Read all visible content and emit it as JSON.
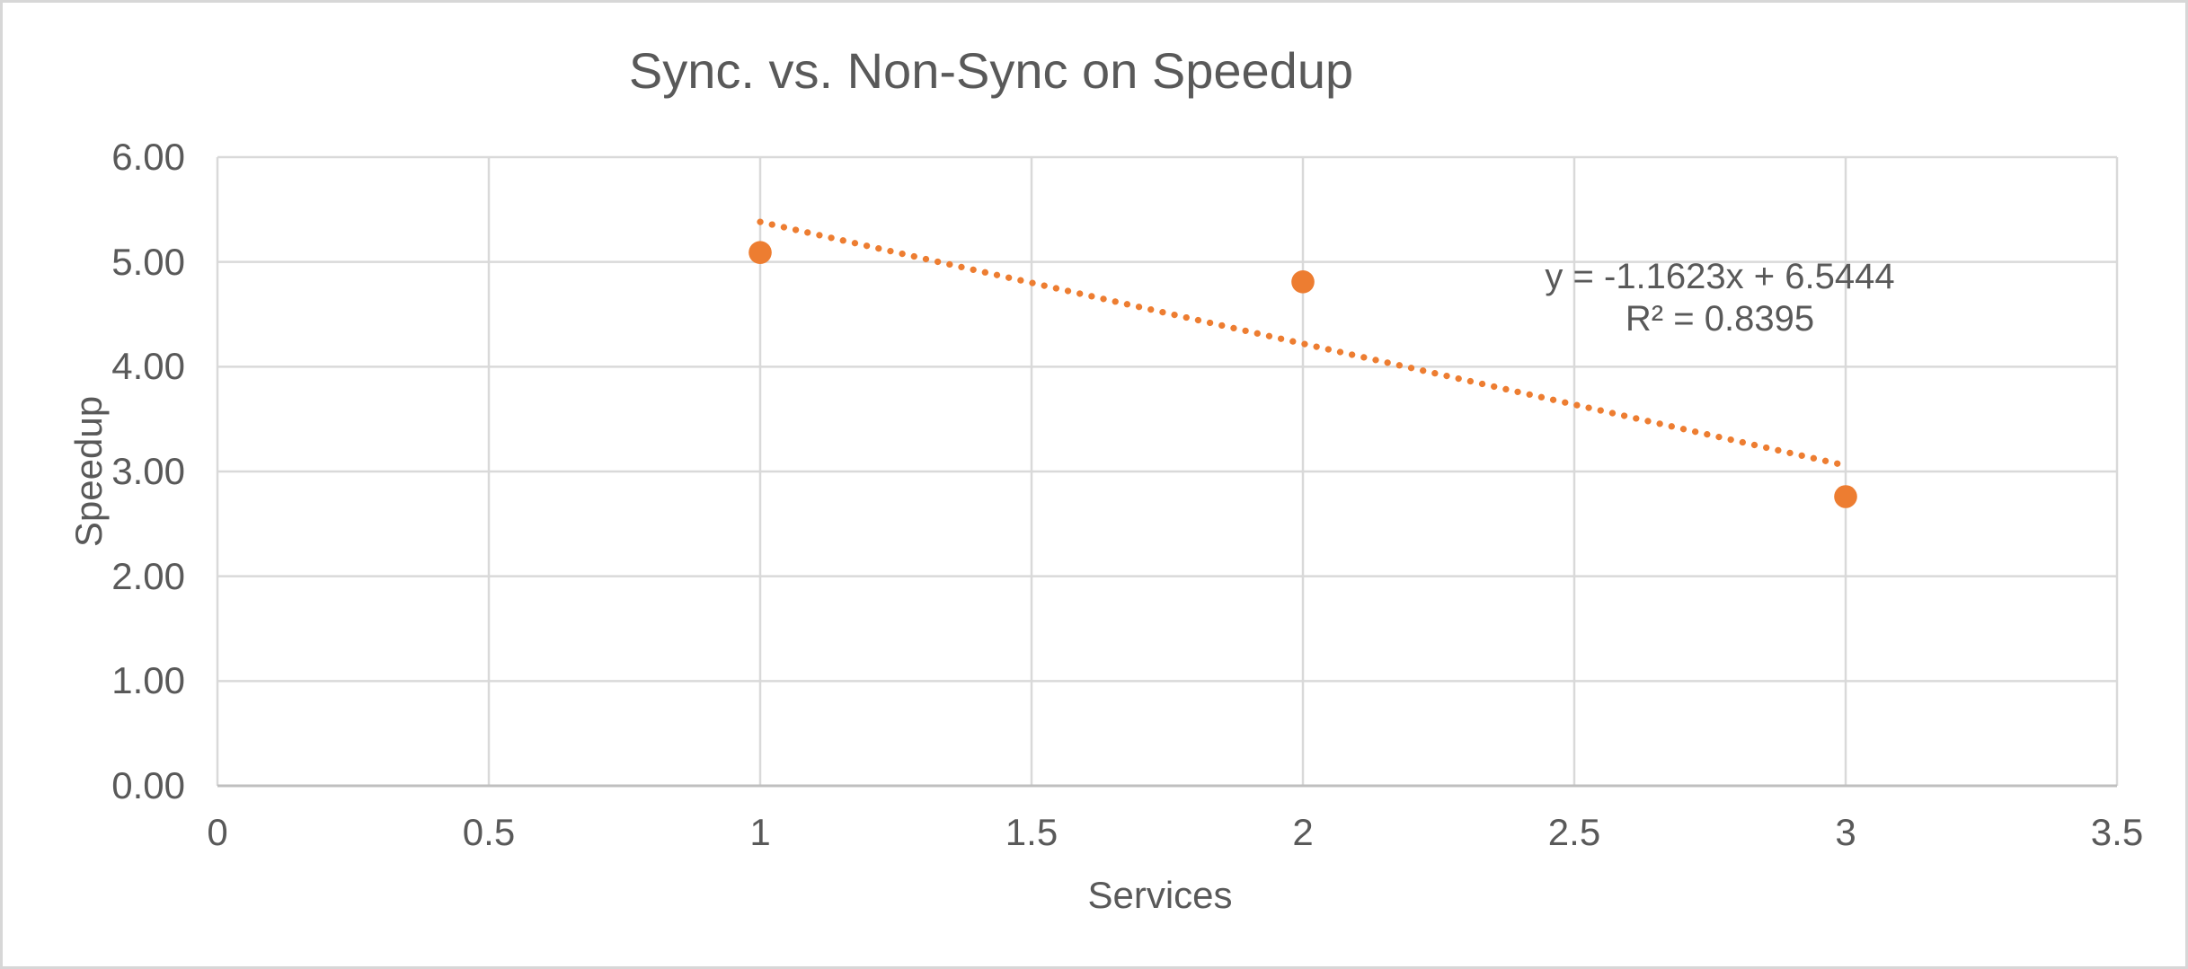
{
  "chart_data": {
    "type": "scatter",
    "title": "Sync. vs. Non-Sync on Speedup",
    "xlabel": "Services",
    "ylabel": "Speedup",
    "series": [
      {
        "name": "Speedup",
        "points": [
          {
            "x": 1,
            "y": 5.09
          },
          {
            "x": 2,
            "y": 4.81
          },
          {
            "x": 3,
            "y": 2.76
          }
        ]
      }
    ],
    "xlim": [
      0,
      3.5
    ],
    "ylim": [
      0,
      6
    ],
    "x_tick_values": [
      0,
      0.5,
      1,
      1.5,
      2,
      2.5,
      3,
      3.5
    ],
    "x_tick_labels": [
      "0",
      "0.5",
      "1",
      "1.5",
      "2",
      "2.5",
      "3",
      "3.5"
    ],
    "y_tick_values": [
      0,
      1,
      2,
      3,
      4,
      5,
      6
    ],
    "y_tick_labels": [
      "0.00",
      "1.00",
      "2.00",
      "3.00",
      "4.00",
      "5.00",
      "6.00"
    ],
    "grid": true,
    "legend": "none",
    "trendline": {
      "kind": "linear",
      "line_style": "dotted",
      "slope": -1.1623,
      "intercept": 6.5444,
      "x_start": 1,
      "x_end": 3,
      "equation_label": "y = -1.1623x + 6.5444",
      "r_squared_label": "R² = 0.8395"
    },
    "colors": {
      "marker": "#ED7D31",
      "trendline": "#ED7D31",
      "gridline": "#D9D9D9",
      "axis_line": "#BFBFBF",
      "text": "#595959",
      "background": "#FFFFFF",
      "chart_border": "#D7D7D7"
    }
  }
}
